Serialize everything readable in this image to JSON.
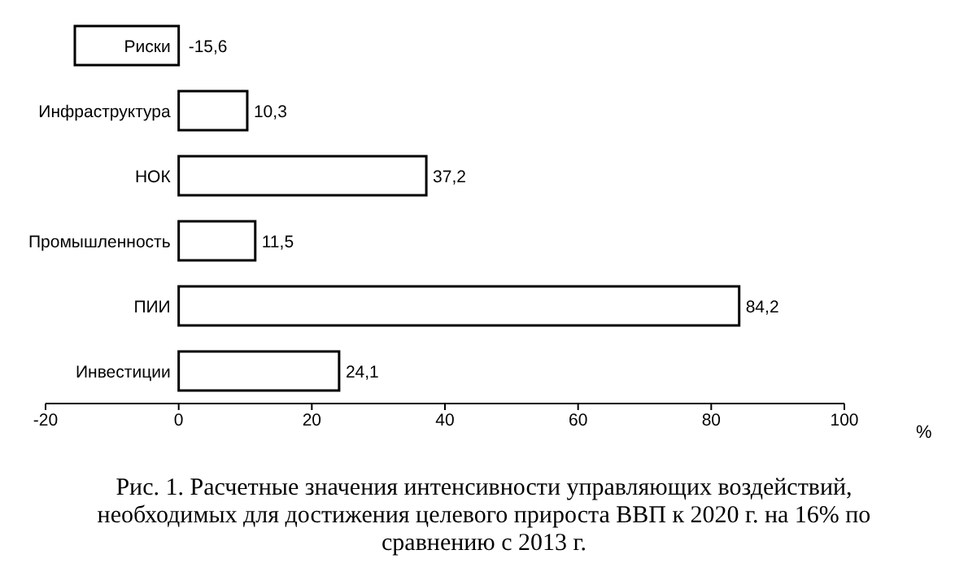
{
  "chart_data": {
    "type": "bar",
    "orientation": "horizontal",
    "categories": [
      "Риски",
      "Инфраструктура",
      "НОК",
      "Промышленность",
      "ПИИ",
      "Инвестиции"
    ],
    "values": [
      -15.6,
      10.3,
      37.2,
      11.5,
      84.2,
      24.1
    ],
    "color": "#ffffff",
    "xlim": [
      -20,
      100
    ],
    "xticks": [
      -20,
      0,
      20,
      40,
      60,
      80,
      100
    ],
    "value_labels": [
      "-15,6",
      "10,3",
      "37,2",
      "11,5",
      "84,2",
      "24,1"
    ],
    "xlabel": "%",
    "grid": false,
    "legend": false,
    "annotations": [
      "Рис. 1. Расчетные значения интенсивности управляющих воздействий, необходимых для достижения целевого прироста ВВП к 2020 г. на 16% по сравнению с 2013 г."
    ]
  }
}
